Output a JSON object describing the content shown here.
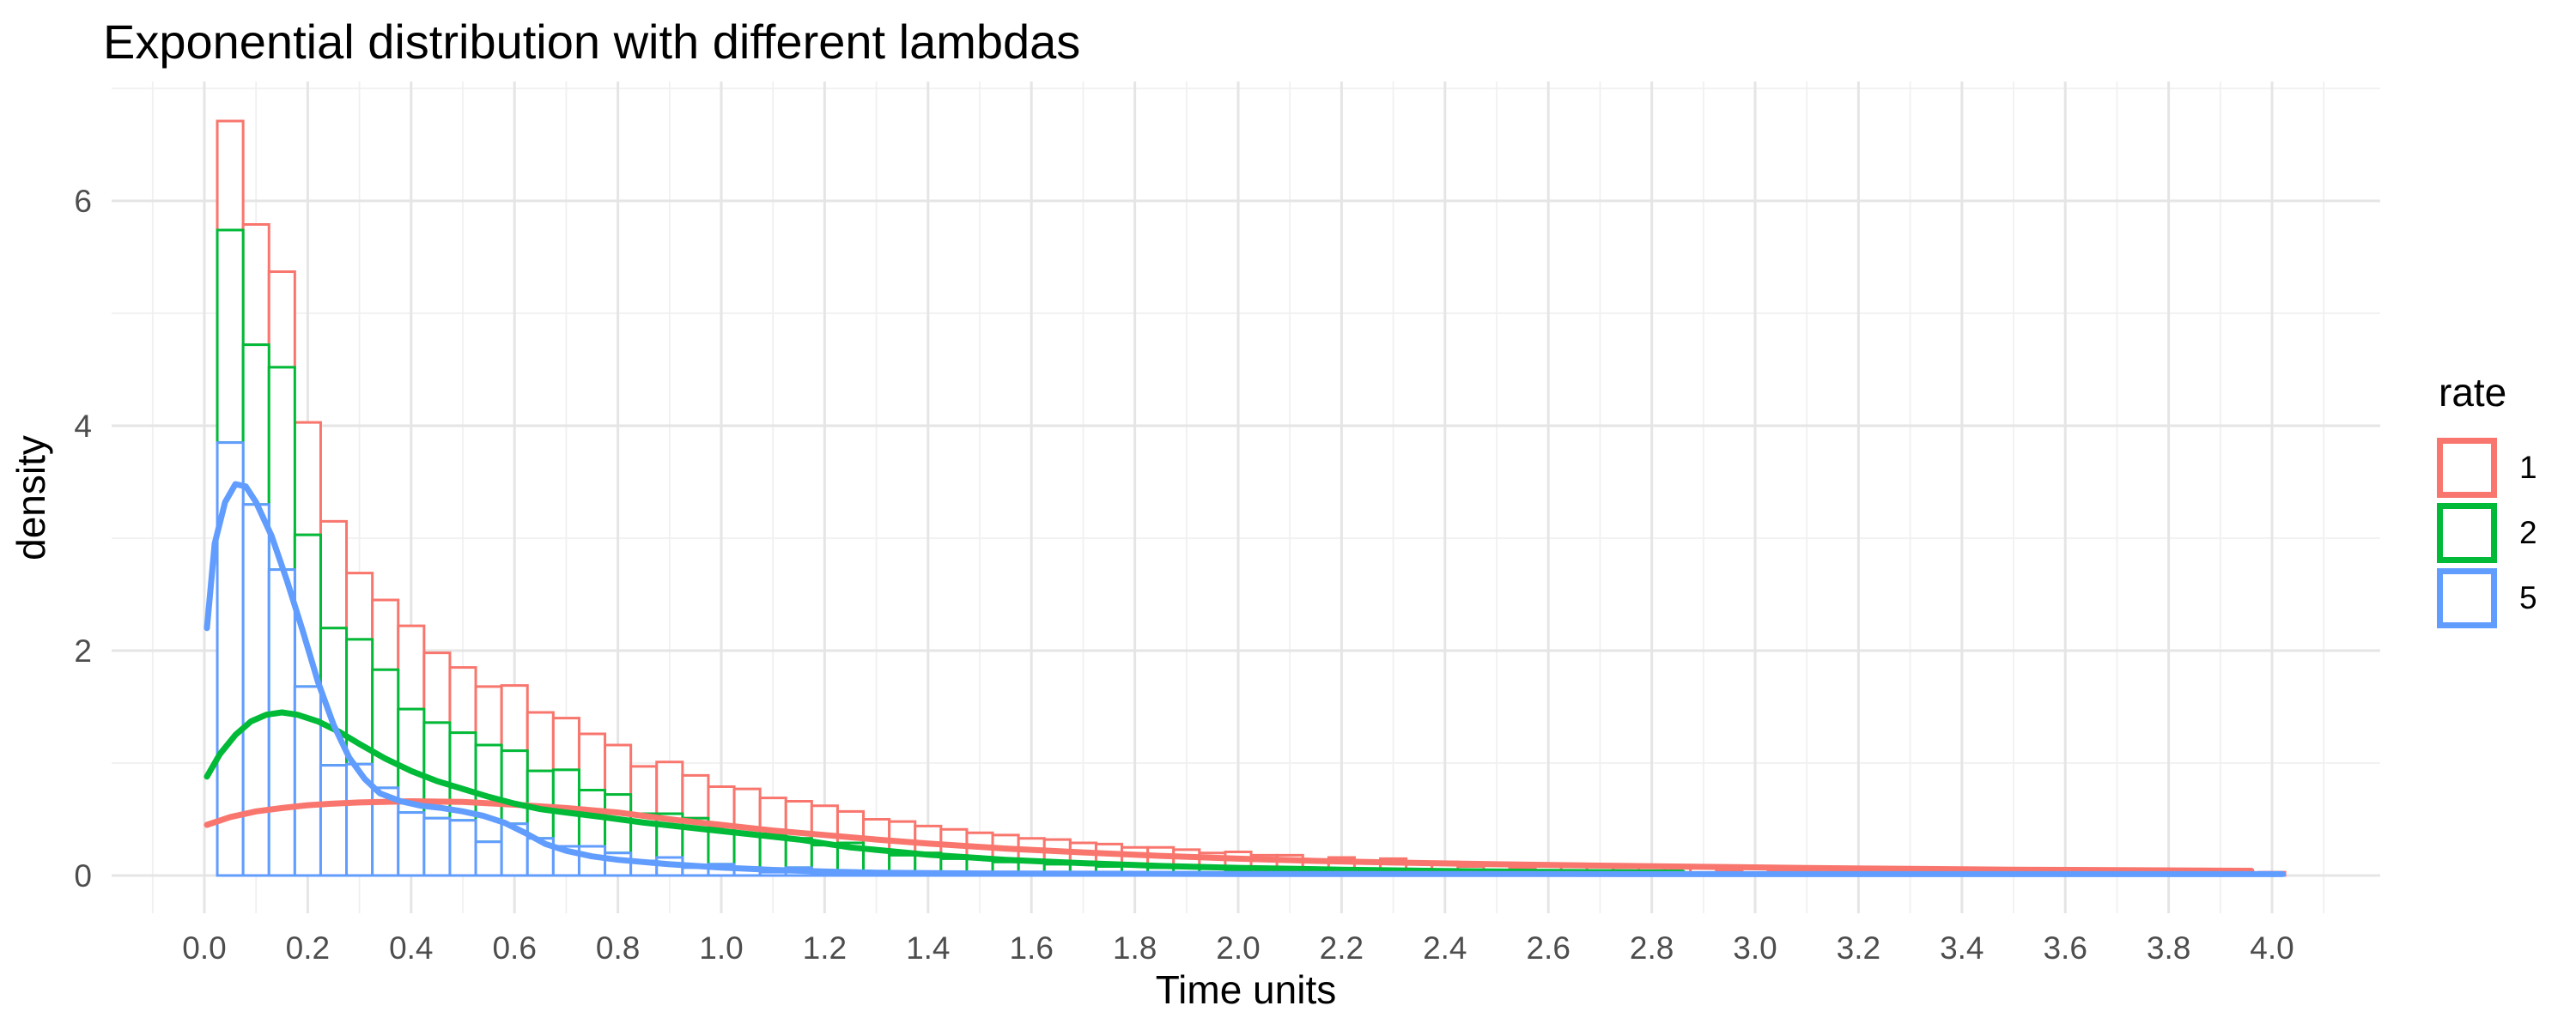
{
  "title": "Exponential distribution with different lambdas",
  "axes": {
    "x": {
      "title": "Time units",
      "tick_labels": [
        "0.0",
        "0.2",
        "0.4",
        "0.6",
        "0.8",
        "1.0",
        "1.2",
        "1.4",
        "1.6",
        "1.8",
        "2.0",
        "2.2",
        "2.4",
        "2.6",
        "2.8",
        "3.0",
        "3.2",
        "3.4",
        "3.6",
        "3.8",
        "4.0"
      ],
      "tick_values": [
        0,
        0.2,
        0.4,
        0.6,
        0.8,
        1.0,
        1.2,
        1.4,
        1.6,
        1.8,
        2.0,
        2.2,
        2.4,
        2.6,
        2.8,
        3.0,
        3.2,
        3.4,
        3.6,
        3.8,
        4.0
      ],
      "minor_values": [
        -0.1,
        0.1,
        0.3,
        0.5,
        0.7,
        0.9,
        1.1,
        1.3,
        1.5,
        1.7,
        1.9,
        2.1,
        2.3,
        2.5,
        2.7,
        2.9,
        3.1,
        3.3,
        3.5,
        3.7,
        3.9,
        4.1
      ],
      "range": [
        -0.18,
        4.22
      ]
    },
    "y": {
      "title": "density",
      "tick_labels": [
        "0",
        "2",
        "4",
        "6"
      ],
      "tick_values": [
        0,
        2,
        4,
        6
      ],
      "minor_values": [
        1,
        3,
        5,
        7
      ],
      "range": [
        -0.34,
        7.06
      ]
    }
  },
  "legend": {
    "title": "rate",
    "position": "right",
    "items": [
      {
        "label": "1",
        "color": "#F8766D"
      },
      {
        "label": "2",
        "color": "#00BA38"
      },
      {
        "label": "5",
        "color": "#619CFF"
      }
    ]
  },
  "style": {
    "grid_major_color": "#E5E5E5",
    "grid_minor_color": "#F0F0F0",
    "tick_label_color": "#4D4D4D",
    "bar_fill": "#FFFFFF",
    "background": "#FFFFFF"
  },
  "chart_data": {
    "type": "bar",
    "subtype": "stacked-density-histogram-with-kde",
    "title": "Exponential distribution with different lambdas",
    "xlabel": "Time units",
    "ylabel": "density",
    "xlim": [
      0,
      4.025
    ],
    "ylim": [
      0,
      7.06
    ],
    "grid": true,
    "legend_position": "right",
    "bin_width": 0.05,
    "bin_start": 0.025,
    "stack_order_bottom_to_top": [
      "5",
      "2",
      "1"
    ],
    "series": [
      {
        "name": "1",
        "rate": 1,
        "color": "#F8766D",
        "bar_densities": [
          0.97,
          1.07,
          0.85,
          1.0,
          0.95,
          0.59,
          0.62,
          0.74,
          0.62,
          0.58,
          0.52,
          0.58,
          0.52,
          0.46,
          0.5,
          0.44,
          0.42,
          0.46,
          0.38,
          0.36,
          0.4,
          0.32,
          0.33,
          0.35,
          0.28,
          0.27,
          0.3,
          0.24,
          0.26,
          0.22,
          0.24,
          0.2,
          0.22,
          0.18,
          0.2,
          0.16,
          0.18,
          0.15,
          0.14,
          0.16,
          0.12,
          0.14,
          0.11,
          0.12,
          0.1,
          0.12,
          0.09,
          0.1,
          0.08,
          0.09,
          0.07,
          0.08,
          0.1,
          0.06,
          0.07,
          0.05,
          0.06,
          0.08,
          0.05,
          0.06,
          0.04,
          0.05,
          0.06,
          0.04,
          0.05,
          0.03,
          0.04,
          0.05,
          0.03,
          0.04,
          0.02,
          0.03,
          0.04,
          0.02,
          0.03,
          0.02,
          0.03,
          0.02,
          0.02,
          0.03
        ],
        "density_curve": [
          [
            0.005,
            0.45
          ],
          [
            0.05,
            0.52
          ],
          [
            0.1,
            0.57
          ],
          [
            0.15,
            0.6
          ],
          [
            0.2,
            0.625
          ],
          [
            0.25,
            0.64
          ],
          [
            0.3,
            0.65
          ],
          [
            0.4,
            0.66
          ],
          [
            0.5,
            0.655
          ],
          [
            0.6,
            0.63
          ],
          [
            0.7,
            0.6
          ],
          [
            0.8,
            0.56
          ],
          [
            0.9,
            0.5
          ],
          [
            0.95,
            0.475
          ],
          [
            1.0,
            0.45
          ],
          [
            1.1,
            0.4
          ],
          [
            1.2,
            0.36
          ],
          [
            1.3,
            0.32
          ],
          [
            1.4,
            0.285
          ],
          [
            1.55,
            0.24
          ],
          [
            1.7,
            0.205
          ],
          [
            1.85,
            0.175
          ],
          [
            2.0,
            0.15
          ],
          [
            2.15,
            0.13
          ],
          [
            2.3,
            0.115
          ],
          [
            2.5,
            0.1
          ],
          [
            2.7,
            0.088
          ],
          [
            2.9,
            0.077
          ],
          [
            3.1,
            0.067
          ],
          [
            3.3,
            0.059
          ],
          [
            3.5,
            0.052
          ],
          [
            3.7,
            0.047
          ],
          [
            3.9,
            0.043
          ],
          [
            3.96,
            0.042
          ]
        ]
      },
      {
        "name": "2",
        "rate": 2,
        "color": "#00BA38",
        "bar_densities": [
          1.89,
          1.42,
          1.8,
          1.35,
          1.22,
          1.11,
          1.05,
          0.92,
          0.85,
          0.78,
          0.86,
          0.65,
          0.6,
          0.68,
          0.5,
          0.52,
          0.42,
          0.39,
          0.44,
          0.33,
          0.3,
          0.34,
          0.26,
          0.24,
          0.26,
          0.2,
          0.18,
          0.2,
          0.15,
          0.16,
          0.12,
          0.13,
          0.1,
          0.11,
          0.08,
          0.09,
          0.07,
          0.08,
          0.06,
          0.05,
          0.06,
          0.04,
          0.03,
          0.04,
          0.02,
          0.03,
          0.02,
          0.02,
          0,
          0.02,
          0,
          0.02,
          0,
          0.02,
          0,
          0.02,
          0.02,
          0,
          0,
          0,
          0,
          0,
          0,
          0,
          0,
          0,
          0,
          0,
          0,
          0,
          0,
          0,
          0,
          0,
          0,
          0,
          0,
          0,
          0,
          0
        ],
        "density_curve": [
          [
            0.005,
            0.88
          ],
          [
            0.03,
            1.08
          ],
          [
            0.06,
            1.25
          ],
          [
            0.09,
            1.37
          ],
          [
            0.12,
            1.43
          ],
          [
            0.15,
            1.45
          ],
          [
            0.18,
            1.43
          ],
          [
            0.22,
            1.37
          ],
          [
            0.26,
            1.28
          ],
          [
            0.3,
            1.17
          ],
          [
            0.35,
            1.04
          ],
          [
            0.4,
            0.93
          ],
          [
            0.45,
            0.84
          ],
          [
            0.5,
            0.77
          ],
          [
            0.55,
            0.7
          ],
          [
            0.6,
            0.64
          ],
          [
            0.65,
            0.59
          ],
          [
            0.7,
            0.56
          ],
          [
            0.77,
            0.52
          ],
          [
            0.85,
            0.47
          ],
          [
            0.95,
            0.42
          ],
          [
            1.05,
            0.37
          ],
          [
            1.15,
            0.32
          ],
          [
            1.25,
            0.25
          ],
          [
            1.4,
            0.185
          ],
          [
            1.55,
            0.14
          ],
          [
            1.7,
            0.11
          ],
          [
            1.85,
            0.085
          ],
          [
            2.0,
            0.068
          ],
          [
            2.2,
            0.052
          ],
          [
            2.4,
            0.04
          ],
          [
            2.6,
            0.032
          ],
          [
            2.86,
            0.026
          ]
        ]
      },
      {
        "name": "5",
        "rate": 5,
        "color": "#619CFF",
        "bar_densities": [
          3.85,
          3.3,
          2.72,
          1.68,
          0.98,
          0.99,
          0.78,
          0.56,
          0.51,
          0.49,
          0.3,
          0.46,
          0.33,
          0.26,
          0.26,
          0.2,
          0.13,
          0.16,
          0.07,
          0.1,
          0.07,
          0.03,
          0.07,
          0.03,
          0.03,
          0.03,
          0,
          0,
          0,
          0,
          0,
          0,
          0,
          0,
          0,
          0,
          0,
          0,
          0,
          0,
          0,
          0,
          0,
          0,
          0,
          0,
          0,
          0,
          0,
          0,
          0,
          0,
          0,
          0,
          0,
          0,
          0,
          0,
          0,
          0,
          0,
          0,
          0,
          0,
          0,
          0,
          0,
          0,
          0,
          0,
          0,
          0,
          0,
          0,
          0,
          0,
          0,
          0,
          0,
          0
        ],
        "density_curve": [
          [
            0.005,
            2.2
          ],
          [
            0.02,
            2.95
          ],
          [
            0.04,
            3.32
          ],
          [
            0.06,
            3.48
          ],
          [
            0.08,
            3.46
          ],
          [
            0.1,
            3.32
          ],
          [
            0.13,
            3.02
          ],
          [
            0.16,
            2.62
          ],
          [
            0.19,
            2.18
          ],
          [
            0.22,
            1.72
          ],
          [
            0.25,
            1.34
          ],
          [
            0.28,
            1.05
          ],
          [
            0.31,
            0.86
          ],
          [
            0.34,
            0.73
          ],
          [
            0.38,
            0.66
          ],
          [
            0.42,
            0.62
          ],
          [
            0.46,
            0.6
          ],
          [
            0.5,
            0.57
          ],
          [
            0.54,
            0.53
          ],
          [
            0.58,
            0.47
          ],
          [
            0.62,
            0.38
          ],
          [
            0.66,
            0.28
          ],
          [
            0.7,
            0.22
          ],
          [
            0.75,
            0.17
          ],
          [
            0.8,
            0.14
          ],
          [
            0.85,
            0.12
          ],
          [
            0.9,
            0.1
          ],
          [
            1.0,
            0.07
          ],
          [
            1.1,
            0.05
          ],
          [
            1.2,
            0.035
          ],
          [
            1.3,
            0.025
          ],
          [
            1.5,
            0.018
          ],
          [
            2.0,
            0.014
          ],
          [
            2.5,
            0.013
          ],
          [
            3.0,
            0.012
          ],
          [
            3.5,
            0.012
          ],
          [
            4.02,
            0.012
          ]
        ]
      }
    ]
  }
}
